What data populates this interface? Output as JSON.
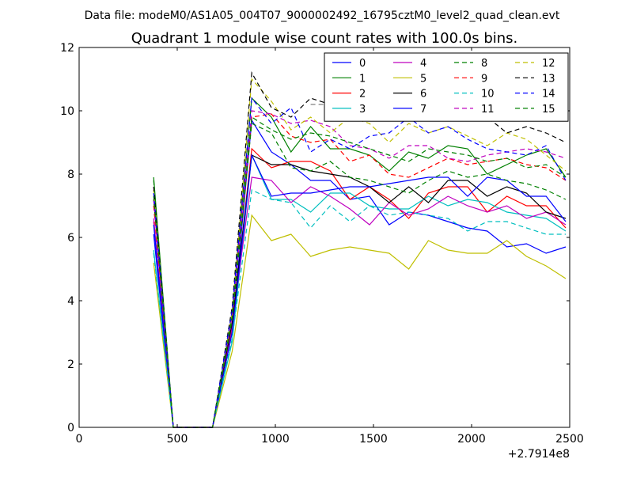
{
  "header": {
    "data_file": "Data file: modeM0/AS1A05_004T07_9000002492_16795cztM0_level2_quad_clean.evt"
  },
  "chart_data": {
    "type": "line",
    "title": "Quadrant 1 module wise count rates with 100.0s bins.",
    "xlabel": "",
    "ylabel": "",
    "x_offset_label": "+2.7914e8",
    "xlim": [
      0,
      2500
    ],
    "ylim": [
      0,
      12
    ],
    "xticks": [
      0,
      500,
      1000,
      1500,
      2000,
      2500
    ],
    "yticks": [
      0,
      2,
      4,
      6,
      8,
      10,
      12
    ],
    "grid": false,
    "legend": {
      "placement": "top-right",
      "columns": 4
    },
    "x": [
      380,
      480,
      580,
      680,
      780,
      880,
      980,
      1080,
      1180,
      1280,
      1380,
      1480,
      1580,
      1680,
      1780,
      1880,
      1980,
      2080,
      2180,
      2280,
      2380,
      2480
    ],
    "series": [
      {
        "name": "0",
        "color": "#0000ff",
        "dash": "solid",
        "values": [
          6.1,
          0,
          0,
          0,
          3.0,
          9.7,
          8.7,
          8.3,
          7.8,
          7.8,
          7.2,
          7.3,
          6.4,
          6.8,
          6.7,
          6.5,
          6.3,
          6.2,
          5.7,
          5.8,
          5.5,
          5.7
        ]
      },
      {
        "name": "1",
        "color": "#008000",
        "dash": "solid",
        "values": [
          7.9,
          0,
          0,
          0,
          3.6,
          10.4,
          9.8,
          8.7,
          9.5,
          8.8,
          8.8,
          8.6,
          8.1,
          8.7,
          8.5,
          8.9,
          8.8,
          8.0,
          8.3,
          8.6,
          8.8,
          7.9
        ]
      },
      {
        "name": "2",
        "color": "#ff0000",
        "dash": "solid",
        "values": [
          6.5,
          0,
          0,
          0,
          3.1,
          8.8,
          8.2,
          8.4,
          8.4,
          8.1,
          7.2,
          7.6,
          7.2,
          6.6,
          7.4,
          7.6,
          7.6,
          6.8,
          7.3,
          7.0,
          7.0,
          6.3
        ]
      },
      {
        "name": "3",
        "color": "#00bfbf",
        "dash": "solid",
        "values": [
          5.6,
          0,
          0,
          0,
          2.7,
          8.6,
          7.2,
          7.2,
          6.8,
          7.4,
          7.4,
          7.0,
          6.9,
          6.9,
          7.3,
          7.0,
          7.2,
          7.1,
          6.8,
          6.7,
          6.6,
          6.2
        ]
      },
      {
        "name": "4",
        "color": "#bf00bf",
        "dash": "solid",
        "values": [
          6.6,
          0,
          0,
          0,
          3.2,
          7.9,
          7.8,
          7.1,
          7.6,
          7.3,
          6.9,
          6.4,
          7.1,
          6.7,
          6.9,
          7.3,
          7.0,
          6.8,
          7.0,
          6.6,
          6.8,
          6.4
        ]
      },
      {
        "name": "5",
        "color": "#bfbf00",
        "dash": "solid",
        "values": [
          5.2,
          0,
          0,
          0,
          2.4,
          6.7,
          5.9,
          6.1,
          5.4,
          5.6,
          5.7,
          5.6,
          5.5,
          5.0,
          5.9,
          5.6,
          5.5,
          5.5,
          5.9,
          5.4,
          5.1,
          4.7
        ]
      },
      {
        "name": "6",
        "color": "#000000",
        "dash": "solid",
        "values": [
          7.2,
          0,
          0,
          0,
          3.3,
          8.6,
          8.3,
          8.3,
          8.1,
          8.0,
          7.9,
          7.6,
          7.1,
          7.6,
          7.1,
          7.8,
          7.8,
          7.3,
          7.6,
          7.4,
          6.8,
          6.6
        ]
      },
      {
        "name": "7",
        "color": "#0000ff",
        "dash": "solid",
        "values": [
          6.4,
          0,
          0,
          0,
          3.0,
          8.6,
          7.3,
          7.4,
          7.4,
          7.5,
          7.6,
          7.6,
          7.7,
          7.8,
          7.9,
          7.9,
          7.3,
          7.9,
          7.8,
          7.3,
          7.3,
          6.5
        ]
      },
      {
        "name": "8",
        "color": "#008000",
        "dash": "dashed",
        "values": [
          7.8,
          0,
          0,
          0,
          3.4,
          9.6,
          9.3,
          8.2,
          8.1,
          8.4,
          7.9,
          7.8,
          7.6,
          7.4,
          7.8,
          8.1,
          7.9,
          8.0,
          7.8,
          7.7,
          7.5,
          7.2
        ]
      },
      {
        "name": "9",
        "color": "#ff0000",
        "dash": "dashed",
        "values": [
          7.0,
          0,
          0,
          0,
          3.5,
          9.8,
          9.9,
          9.2,
          9.0,
          9.1,
          8.4,
          8.6,
          8.0,
          7.9,
          8.2,
          8.5,
          8.3,
          8.4,
          8.5,
          8.3,
          8.2,
          7.8
        ]
      },
      {
        "name": "10",
        "color": "#00bfbf",
        "dash": "dashed",
        "values": [
          5.5,
          0,
          0,
          0,
          2.8,
          7.5,
          7.2,
          7.1,
          6.3,
          7.0,
          6.5,
          7.0,
          6.7,
          6.8,
          6.7,
          6.6,
          6.2,
          6.5,
          6.5,
          6.3,
          6.1,
          6.1
        ]
      },
      {
        "name": "11",
        "color": "#bf00bf",
        "dash": "dashed",
        "values": [
          7.2,
          0,
          0,
          0,
          3.5,
          10.0,
          9.9,
          9.6,
          9.7,
          9.5,
          8.9,
          8.8,
          8.5,
          8.9,
          8.9,
          8.5,
          8.4,
          8.6,
          8.7,
          8.8,
          8.7,
          8.5
        ]
      },
      {
        "name": "12",
        "color": "#bfbf00",
        "dash": "dashed",
        "values": [
          7.5,
          0,
          0,
          0,
          3.6,
          11.0,
          10.3,
          9.4,
          9.8,
          9.3,
          9.8,
          9.6,
          9.0,
          9.6,
          9.3,
          9.5,
          9.2,
          8.9,
          9.3,
          9.1,
          8.6,
          8.1
        ]
      },
      {
        "name": "13",
        "color": "#000000",
        "dash": "dashed",
        "values": [
          7.6,
          0,
          0,
          0,
          3.8,
          11.2,
          10.1,
          9.8,
          10.4,
          10.2,
          10.1,
          10.0,
          9.7,
          9.8,
          9.9,
          9.8,
          9.7,
          9.8,
          9.3,
          9.5,
          9.3,
          9.0
        ]
      },
      {
        "name": "14",
        "color": "#0000ff",
        "dash": "dashed",
        "values": [
          7.4,
          0,
          0,
          0,
          3.7,
          10.4,
          9.6,
          10.1,
          8.7,
          9.1,
          8.8,
          9.2,
          9.3,
          9.8,
          9.3,
          9.5,
          9.1,
          8.8,
          8.7,
          8.6,
          8.9,
          7.8
        ]
      },
      {
        "name": "15",
        "color": "#008000",
        "dash": "dashed",
        "values": [
          7.3,
          0,
          0,
          0,
          3.5,
          9.8,
          9.4,
          9.1,
          9.3,
          9.2,
          9.0,
          8.8,
          8.6,
          8.4,
          8.8,
          8.7,
          8.6,
          8.4,
          8.5,
          8.2,
          8.3,
          7.9
        ]
      },
      {
        "name": "",
        "color": "#808080",
        "dash": "dashed",
        "values": [
          null,
          null,
          null,
          null,
          null,
          null,
          null,
          null,
          10.2,
          10.2,
          10.1,
          10.6,
          10.3,
          9.9,
          9.8,
          9.8,
          9.7,
          9.7,
          null,
          null,
          null,
          null
        ]
      }
    ]
  }
}
